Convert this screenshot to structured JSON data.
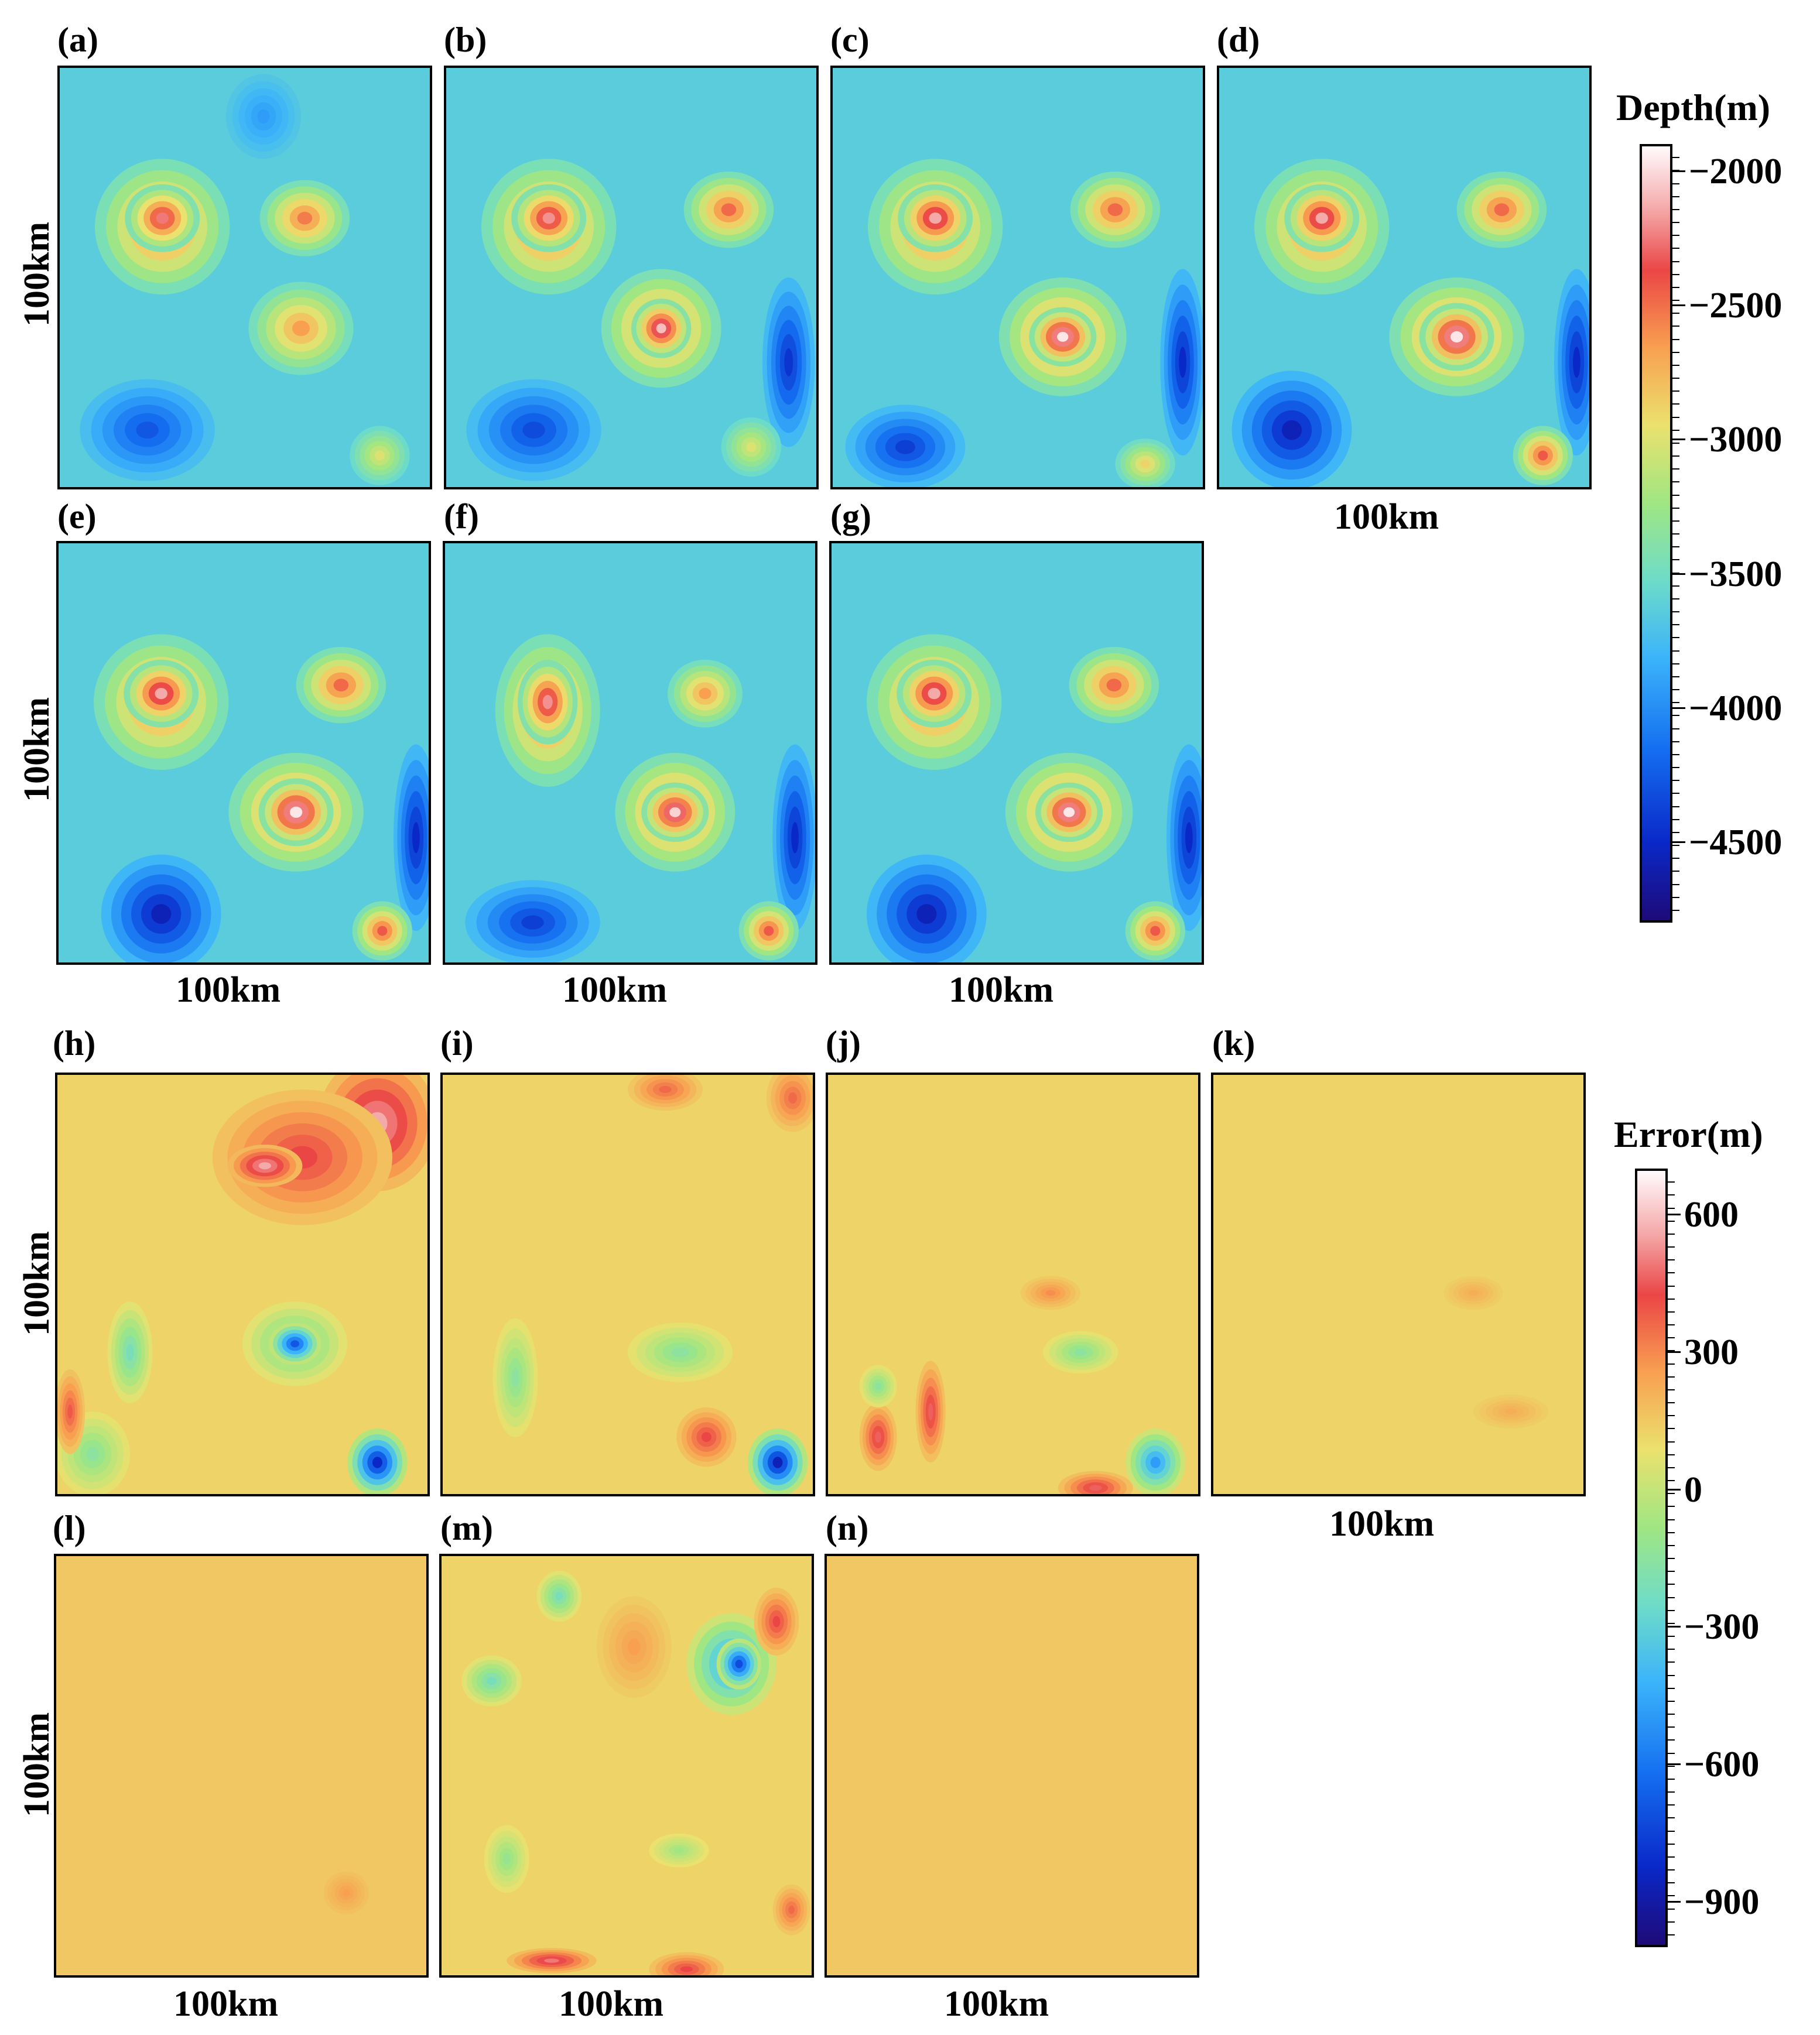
{
  "figure": {
    "depth_panels": [
      {
        "id": "a",
        "label": "(a)"
      },
      {
        "id": "b",
        "label": "(b)"
      },
      {
        "id": "c",
        "label": "(c)"
      },
      {
        "id": "d",
        "label": "(d)"
      },
      {
        "id": "e",
        "label": "(e)"
      },
      {
        "id": "f",
        "label": "(f)"
      },
      {
        "id": "g",
        "label": "(g)"
      }
    ],
    "error_panels": [
      {
        "id": "h",
        "label": "(h)"
      },
      {
        "id": "i",
        "label": "(i)"
      },
      {
        "id": "j",
        "label": "(j)"
      },
      {
        "id": "k",
        "label": "(k)"
      },
      {
        "id": "l",
        "label": "(l)"
      },
      {
        "id": "m",
        "label": "(m)"
      },
      {
        "id": "n",
        "label": "(n)"
      }
    ],
    "axis_text": "100km"
  },
  "chart_data": [
    {
      "type": "heatmap",
      "title": "Depth(m)",
      "panels": [
        "(a)",
        "(b)",
        "(c)",
        "(d)",
        "(e)",
        "(f)",
        "(g)"
      ],
      "xlabel": "100km",
      "ylabel": "100km",
      "colorbar": {
        "label": "Depth(m)",
        "range": [
          -4800,
          -1900
        ],
        "ticks": [
          -2000,
          -2500,
          -3000,
          -3500,
          -4000,
          -4500
        ],
        "tick_labels": [
          "−2000",
          "−2500",
          "−3000",
          "−3500",
          "−4000",
          "−4500"
        ],
        "colormap": "jet-like (dark blue to white)"
      }
    },
    {
      "type": "heatmap",
      "title": "Error(m)",
      "panels": [
        "(h)",
        "(i)",
        "(j)",
        "(k)",
        "(l)",
        "(m)",
        "(n)"
      ],
      "xlabel": "100km",
      "ylabel": "100km",
      "colorbar": {
        "label": "Error(m)",
        "range": [
          -1000,
          700
        ],
        "ticks": [
          600,
          300,
          0,
          -300,
          -600,
          -900
        ],
        "tick_labels": [
          "600",
          "300",
          "0",
          "−300",
          "−600",
          "−900"
        ],
        "colormap": "jet-like (dark blue to white)"
      }
    }
  ]
}
